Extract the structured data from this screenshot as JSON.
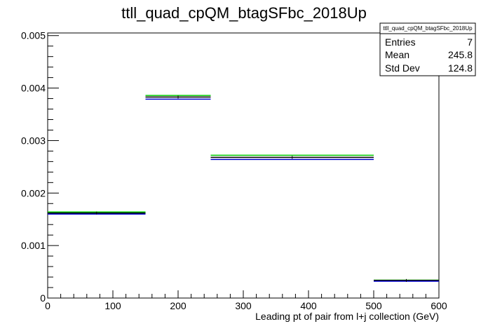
{
  "chart_data": {
    "type": "bar",
    "title": "ttll_quad_cpQM_btagSFbc_2018Up",
    "xlabel": "Leading pt of pair from l+j collection (GeV)",
    "ylabel": "",
    "xlim": [
      0,
      600
    ],
    "ylim": [
      0,
      0.00505
    ],
    "x_ticks": [
      0,
      100,
      200,
      300,
      400,
      500,
      600
    ],
    "y_ticks": [
      0,
      0.001,
      0.002,
      0.003,
      0.004,
      0.005
    ],
    "y_tick_labels": [
      "0",
      "0.001",
      "0.002",
      "0.003",
      "0.004",
      "0.005"
    ],
    "grid": false,
    "bins": [
      [
        0,
        150
      ],
      [
        150,
        250
      ],
      [
        250,
        500
      ],
      [
        500,
        600
      ]
    ],
    "series": [
      {
        "color": "#00cc00",
        "values": [
          0.00164,
          0.00386,
          0.00272,
          0.00034
        ]
      },
      {
        "color": "#000000",
        "values": [
          0.00162,
          0.00383,
          0.00268,
          0.000335
        ]
      },
      {
        "color": "#0000cc",
        "values": [
          0.0016,
          0.00379,
          0.00264,
          0.00032
        ]
      }
    ],
    "stats": {
      "title": "ttll_quad_cpQM_btagSFbc_2018Up",
      "rows": [
        {
          "label": "Entries",
          "value": "7"
        },
        {
          "label": "Mean",
          "value": "245.8"
        },
        {
          "label": "Std Dev",
          "value": "124.8"
        }
      ]
    }
  }
}
